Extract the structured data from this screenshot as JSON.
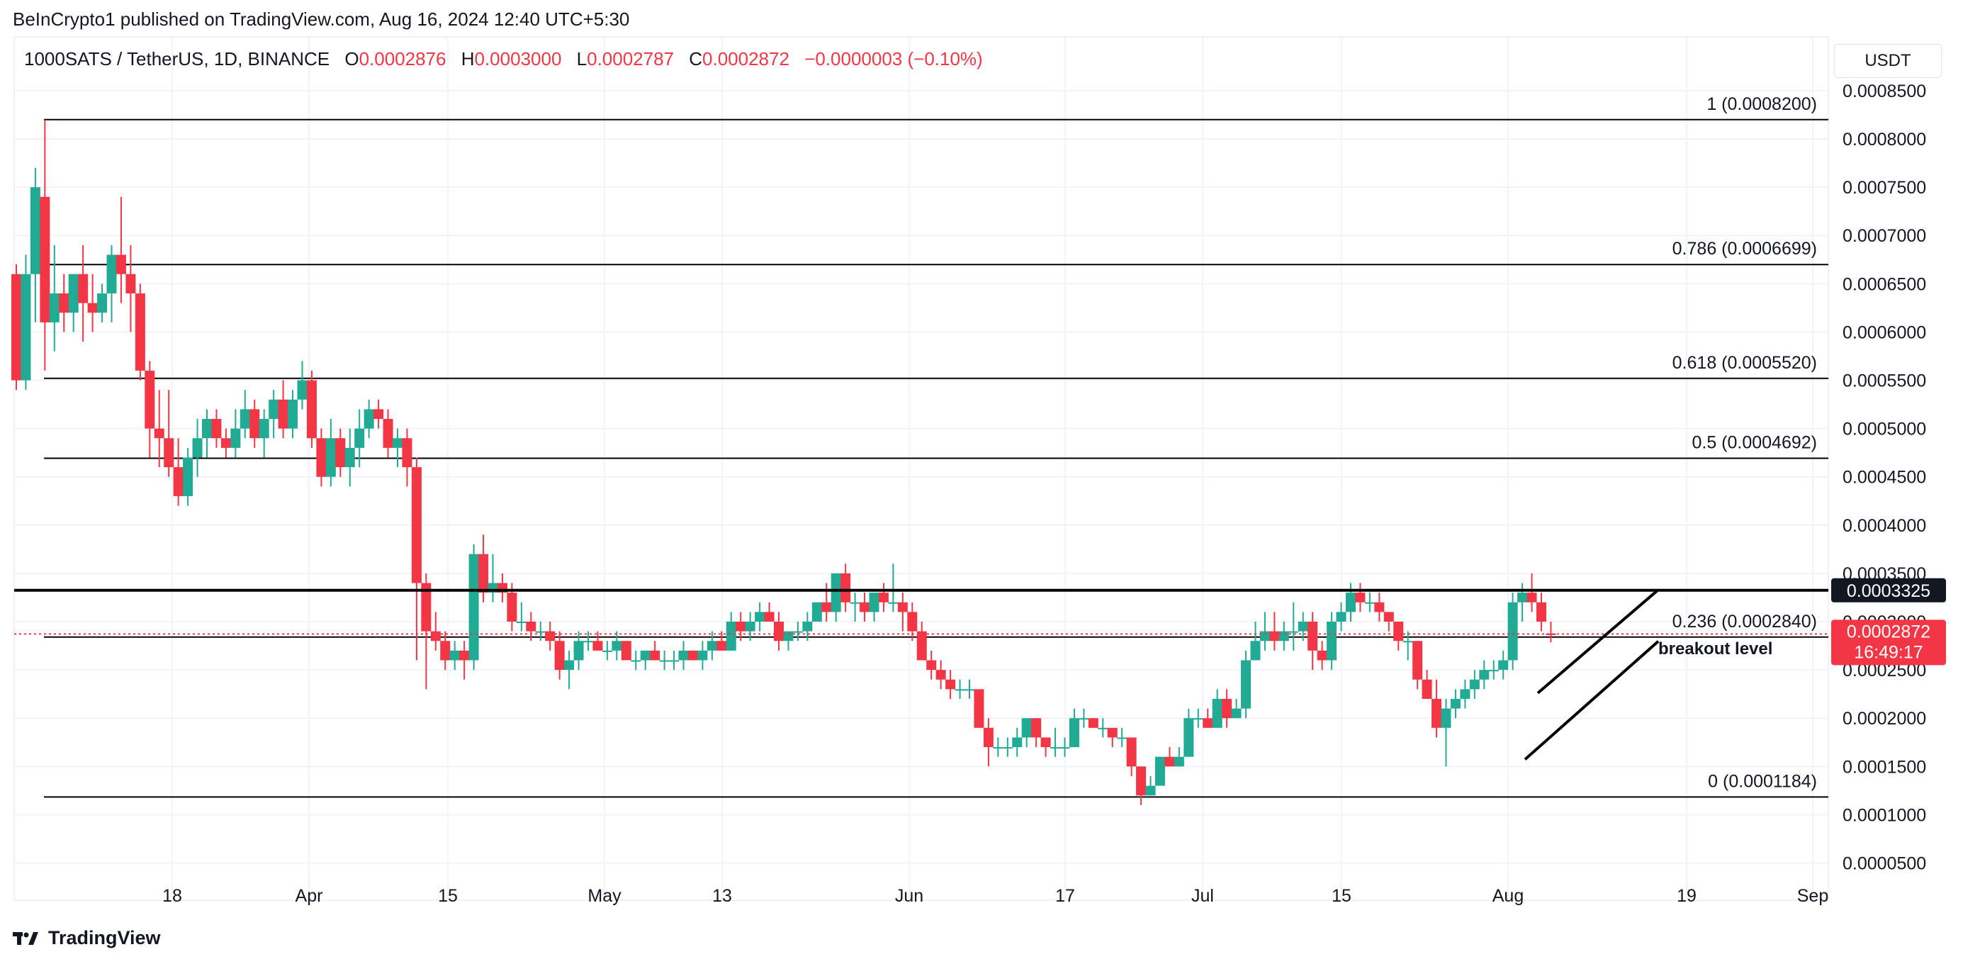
{
  "header": {
    "published": "BeInCrypto1 published on TradingView.com, Aug 16, 2024 12:40 UTC+5:30",
    "symbol": "1000SATS / TetherUS, 1D, BINANCE",
    "o_label": "O",
    "o_value": "0.0002876",
    "h_label": "H",
    "h_value": "0.0003000",
    "l_label": "L",
    "l_value": "0.0002787",
    "c_label": "C",
    "c_value": "0.0002872",
    "change": "−0.0000003 (−0.10%)"
  },
  "currency": "USDT",
  "footer": {
    "brand": "TradingView"
  },
  "colors": {
    "up": "#22ab94",
    "down": "#f23645",
    "grid": "#f0f3fa",
    "text": "#131722",
    "line": "#000000"
  },
  "chart_data": {
    "type": "candlestick",
    "x_ticks": [
      "18",
      "Apr",
      "15",
      "May",
      "13",
      "Jun",
      "17",
      "Jul",
      "15",
      "Aug",
      "19",
      "Sep"
    ],
    "y_ticks": [
      "0.0008500",
      "0.0008000",
      "0.0007500",
      "0.0007000",
      "0.0006500",
      "0.0006000",
      "0.0005500",
      "0.0005000",
      "0.0004500",
      "0.0004000",
      "0.0003500",
      "0.0003000",
      "0.0002500",
      "0.0002000",
      "0.0001500",
      "0.0001000",
      "0.0000500"
    ],
    "y_tick_values": [
      0.00085,
      0.0008,
      0.00075,
      0.0007,
      0.00065,
      0.0006,
      0.00055,
      0.0005,
      0.00045,
      0.0004,
      0.00035,
      0.0003,
      0.00025,
      0.0002,
      0.00015,
      0.0001,
      5e-05
    ],
    "fib_levels": [
      {
        "label": "1 (0.0008200)",
        "value": 0.00082
      },
      {
        "label": "0.786 (0.0006699)",
        "value": 0.0006699
      },
      {
        "label": "0.618 (0.0005520)",
        "value": 0.000552
      },
      {
        "label": "0.5 (0.0004692)",
        "value": 0.0004692
      },
      {
        "label": "0.236 (0.0002840)",
        "value": 0.000284
      },
      {
        "label": "0 (0.0001184)",
        "value": 0.0001184
      }
    ],
    "resistance": {
      "value": 0.00033245,
      "label": "0.0003325"
    },
    "last_price": {
      "value": 0.0002872,
      "label": "0.0002872",
      "countdown": "16:49:17"
    },
    "annotation": "breakout level",
    "channel": {
      "lower": {
        "from": [
          "Aug 1",
          0.000172
        ],
        "to": [
          "Aug 16",
          0.000287
        ]
      },
      "upper": {
        "from": [
          "Aug 1",
          0.000226
        ],
        "to": [
          "Aug 16",
          0.000333
        ]
      }
    },
    "candles": [
      [
        0.00066,
        0.00067,
        0.00054,
        0.00055
      ],
      [
        0.00055,
        0.00068,
        0.00054,
        0.00066
      ],
      [
        0.00066,
        0.00077,
        0.00061,
        0.00075
      ],
      [
        0.00074,
        0.00082,
        0.00056,
        0.00061
      ],
      [
        0.00061,
        0.00069,
        0.00058,
        0.00064
      ],
      [
        0.00064,
        0.00066,
        0.0006,
        0.00062
      ],
      [
        0.00062,
        0.00066,
        0.0006,
        0.00066
      ],
      [
        0.00066,
        0.00069,
        0.00059,
        0.00063
      ],
      [
        0.00063,
        0.00066,
        0.0006,
        0.00062
      ],
      [
        0.00062,
        0.00065,
        0.00061,
        0.00064
      ],
      [
        0.00064,
        0.00069,
        0.00061,
        0.00068
      ],
      [
        0.00068,
        0.00074,
        0.00063,
        0.00066
      ],
      [
        0.00066,
        0.00069,
        0.0006,
        0.00064
      ],
      [
        0.00064,
        0.00065,
        0.00055,
        0.00056
      ],
      [
        0.00056,
        0.00057,
        0.00047,
        0.0005
      ],
      [
        0.0005,
        0.00054,
        0.00046,
        0.00049
      ],
      [
        0.00049,
        0.00054,
        0.00045,
        0.00046
      ],
      [
        0.00046,
        0.00049,
        0.00042,
        0.00043
      ],
      [
        0.00043,
        0.00048,
        0.00042,
        0.00047
      ],
      [
        0.00047,
        0.00051,
        0.00045,
        0.00049
      ],
      [
        0.00049,
        0.00052,
        0.00047,
        0.00051
      ],
      [
        0.00051,
        0.00052,
        0.00048,
        0.00049
      ],
      [
        0.00049,
        0.0005,
        0.00047,
        0.00048
      ],
      [
        0.00048,
        0.00052,
        0.00047,
        0.0005
      ],
      [
        0.0005,
        0.00054,
        0.00049,
        0.00052
      ],
      [
        0.00052,
        0.00053,
        0.00048,
        0.00049
      ],
      [
        0.00049,
        0.00052,
        0.00047,
        0.00051
      ],
      [
        0.00051,
        0.00054,
        0.00049,
        0.00053
      ],
      [
        0.00053,
        0.00055,
        0.00049,
        0.0005
      ],
      [
        0.0005,
        0.00054,
        0.00049,
        0.00053
      ],
      [
        0.00053,
        0.00057,
        0.00052,
        0.00055
      ],
      [
        0.00055,
        0.00056,
        0.00048,
        0.00049
      ],
      [
        0.00049,
        0.0005,
        0.00044,
        0.00045
      ],
      [
        0.00045,
        0.00051,
        0.00044,
        0.00049
      ],
      [
        0.00049,
        0.0005,
        0.00045,
        0.00046
      ],
      [
        0.00046,
        0.0005,
        0.00044,
        0.00048
      ],
      [
        0.00048,
        0.00052,
        0.00046,
        0.0005
      ],
      [
        0.0005,
        0.00053,
        0.00049,
        0.00052
      ],
      [
        0.00052,
        0.00053,
        0.0005,
        0.00051
      ],
      [
        0.00051,
        0.00052,
        0.00047,
        0.00048
      ],
      [
        0.00048,
        0.0005,
        0.00046,
        0.00049
      ],
      [
        0.00049,
        0.0005,
        0.00044,
        0.00046
      ],
      [
        0.00046,
        0.00047,
        0.00026,
        0.00034
      ],
      [
        0.00034,
        0.00035,
        0.00023,
        0.00029
      ],
      [
        0.00029,
        0.00031,
        0.00027,
        0.00028
      ],
      [
        0.00028,
        0.00029,
        0.00025,
        0.00026
      ],
      [
        0.00026,
        0.00028,
        0.00025,
        0.00027
      ],
      [
        0.00027,
        0.00028,
        0.00024,
        0.00026
      ],
      [
        0.00026,
        0.00038,
        0.00025,
        0.00037
      ],
      [
        0.00037,
        0.00039,
        0.00032,
        0.00033
      ],
      [
        0.00033,
        0.00037,
        0.00032,
        0.00034
      ],
      [
        0.00034,
        0.00035,
        0.00032,
        0.00033
      ],
      [
        0.00033,
        0.00034,
        0.00029,
        0.0003
      ],
      [
        0.0003,
        0.00032,
        0.00029,
        0.0003
      ],
      [
        0.0003,
        0.00031,
        0.00028,
        0.00029
      ],
      [
        0.00029,
        0.0003,
        0.00028,
        0.00029
      ],
      [
        0.00029,
        0.0003,
        0.00027,
        0.00028
      ],
      [
        0.00028,
        0.00029,
        0.00024,
        0.00025
      ],
      [
        0.00025,
        0.00027,
        0.00023,
        0.00026
      ],
      [
        0.00026,
        0.00029,
        0.00025,
        0.00028
      ],
      [
        0.00028,
        0.00029,
        0.00027,
        0.00028
      ],
      [
        0.00028,
        0.00029,
        0.00027,
        0.00027
      ],
      [
        0.00027,
        0.00028,
        0.00026,
        0.00027
      ],
      [
        0.00027,
        0.00029,
        0.00026,
        0.00028
      ],
      [
        0.00028,
        0.00028,
        0.00026,
        0.00026
      ],
      [
        0.00026,
        0.00027,
        0.00025,
        0.00026
      ],
      [
        0.00026,
        0.00027,
        0.00025,
        0.00027
      ],
      [
        0.00027,
        0.00028,
        0.00026,
        0.00026
      ],
      [
        0.00026,
        0.00027,
        0.00025,
        0.00026
      ],
      [
        0.00026,
        0.00027,
        0.00025,
        0.00026
      ],
      [
        0.00026,
        0.00028,
        0.00025,
        0.00027
      ],
      [
        0.00027,
        0.00027,
        0.00026,
        0.00026
      ],
      [
        0.00026,
        0.00028,
        0.00025,
        0.00027
      ],
      [
        0.00027,
        0.00029,
        0.00026,
        0.00028
      ],
      [
        0.00028,
        0.00029,
        0.00027,
        0.00027
      ],
      [
        0.00027,
        0.00031,
        0.00027,
        0.0003
      ],
      [
        0.0003,
        0.00031,
        0.00028,
        0.00029
      ],
      [
        0.00029,
        0.00031,
        0.00028,
        0.0003
      ],
      [
        0.0003,
        0.00032,
        0.00029,
        0.00031
      ],
      [
        0.00031,
        0.00032,
        0.0003,
        0.0003
      ],
      [
        0.0003,
        0.00031,
        0.00027,
        0.00028
      ],
      [
        0.00028,
        0.00029,
        0.00027,
        0.00029
      ],
      [
        0.00029,
        0.0003,
        0.00028,
        0.00029
      ],
      [
        0.00029,
        0.00031,
        0.00028,
        0.0003
      ],
      [
        0.0003,
        0.00032,
        0.0003,
        0.00032
      ],
      [
        0.00032,
        0.00034,
        0.0003,
        0.00031
      ],
      [
        0.00031,
        0.00035,
        0.0003,
        0.00035
      ],
      [
        0.00035,
        0.00036,
        0.00031,
        0.00032
      ],
      [
        0.00032,
        0.00033,
        0.0003,
        0.00032
      ],
      [
        0.00032,
        0.00033,
        0.0003,
        0.00031
      ],
      [
        0.00031,
        0.00033,
        0.0003,
        0.00033
      ],
      [
        0.00033,
        0.00034,
        0.00031,
        0.00032
      ],
      [
        0.00032,
        0.00036,
        0.00031,
        0.00032
      ],
      [
        0.00032,
        0.00033,
        0.00029,
        0.00031
      ],
      [
        0.00031,
        0.00032,
        0.00028,
        0.00029
      ],
      [
        0.00029,
        0.0003,
        0.00026,
        0.00026
      ],
      [
        0.00026,
        0.00027,
        0.00024,
        0.00025
      ],
      [
        0.00025,
        0.00026,
        0.00023,
        0.00024
      ],
      [
        0.00024,
        0.00025,
        0.00022,
        0.00023
      ],
      [
        0.00023,
        0.00024,
        0.00022,
        0.00023
      ],
      [
        0.00023,
        0.00024,
        0.00022,
        0.00023
      ],
      [
        0.00023,
        0.00023,
        0.00019,
        0.00019
      ],
      [
        0.00019,
        0.0002,
        0.00015,
        0.00017
      ],
      [
        0.00017,
        0.00018,
        0.00016,
        0.00017
      ],
      [
        0.00017,
        0.00018,
        0.00016,
        0.00017
      ],
      [
        0.00017,
        0.00019,
        0.00016,
        0.00018
      ],
      [
        0.00018,
        0.0002,
        0.00017,
        0.0002
      ],
      [
        0.0002,
        0.0002,
        0.00017,
        0.00018
      ],
      [
        0.00018,
        0.00018,
        0.00016,
        0.00017
      ],
      [
        0.00017,
        0.00019,
        0.00016,
        0.00017
      ],
      [
        0.00017,
        0.00018,
        0.00016,
        0.00017
      ],
      [
        0.00017,
        0.00021,
        0.00017,
        0.0002
      ],
      [
        0.0002,
        0.00021,
        0.00019,
        0.0002
      ],
      [
        0.0002,
        0.0002,
        0.00019,
        0.00019
      ],
      [
        0.00019,
        0.0002,
        0.00018,
        0.00019
      ],
      [
        0.00019,
        0.00019,
        0.00017,
        0.00018
      ],
      [
        0.00018,
        0.00019,
        0.00017,
        0.00018
      ],
      [
        0.00018,
        0.00018,
        0.00014,
        0.00015
      ],
      [
        0.00015,
        0.00015,
        0.00011,
        0.00012
      ],
      [
        0.00012,
        0.00014,
        0.00012,
        0.00013
      ],
      [
        0.00013,
        0.00016,
        0.00013,
        0.00016
      ],
      [
        0.00016,
        0.00017,
        0.00015,
        0.00015
      ],
      [
        0.00015,
        0.00017,
        0.00015,
        0.00016
      ],
      [
        0.00016,
        0.00021,
        0.00016,
        0.0002
      ],
      [
        0.0002,
        0.00021,
        0.00019,
        0.0002
      ],
      [
        0.0002,
        0.00021,
        0.00019,
        0.00019
      ],
      [
        0.00019,
        0.00023,
        0.00019,
        0.00022
      ],
      [
        0.00022,
        0.00023,
        0.00019,
        0.0002
      ],
      [
        0.0002,
        0.00022,
        0.0002,
        0.00021
      ],
      [
        0.00021,
        0.00027,
        0.0002,
        0.00026
      ],
      [
        0.00026,
        0.0003,
        0.00026,
        0.00028
      ],
      [
        0.00028,
        0.00031,
        0.00027,
        0.00029
      ],
      [
        0.00029,
        0.00031,
        0.00027,
        0.00028
      ],
      [
        0.00028,
        0.0003,
        0.00027,
        0.00029
      ],
      [
        0.00029,
        0.00032,
        0.00027,
        0.00029
      ],
      [
        0.00029,
        0.00031,
        0.00028,
        0.0003
      ],
      [
        0.0003,
        0.00031,
        0.00025,
        0.00027
      ],
      [
        0.00027,
        0.00028,
        0.00025,
        0.00026
      ],
      [
        0.00026,
        0.00031,
        0.00025,
        0.0003
      ],
      [
        0.0003,
        0.00032,
        0.00029,
        0.00031
      ],
      [
        0.00031,
        0.00034,
        0.0003,
        0.00033
      ],
      [
        0.00033,
        0.00034,
        0.00031,
        0.00032
      ],
      [
        0.00032,
        0.00033,
        0.00031,
        0.00032
      ],
      [
        0.00032,
        0.00033,
        0.0003,
        0.00031
      ],
      [
        0.00031,
        0.00031,
        0.00029,
        0.0003
      ],
      [
        0.0003,
        0.0003,
        0.00027,
        0.00028
      ],
      [
        0.00028,
        0.00029,
        0.00026,
        0.00028
      ],
      [
        0.00028,
        0.00028,
        0.00023,
        0.00024
      ],
      [
        0.00024,
        0.00025,
        0.00022,
        0.00022
      ],
      [
        0.00022,
        0.00024,
        0.00018,
        0.00019
      ],
      [
        0.00019,
        0.00022,
        0.00015,
        0.00021
      ],
      [
        0.00021,
        0.00023,
        0.0002,
        0.00022
      ],
      [
        0.00022,
        0.00024,
        0.00021,
        0.00023
      ],
      [
        0.00023,
        0.00025,
        0.00022,
        0.00024
      ],
      [
        0.00024,
        0.00026,
        0.00023,
        0.00025
      ],
      [
        0.00025,
        0.00026,
        0.00024,
        0.00025
      ],
      [
        0.00025,
        0.00027,
        0.00024,
        0.00026
      ],
      [
        0.00026,
        0.00033,
        0.00025,
        0.00032
      ],
      [
        0.00032,
        0.00034,
        0.0003,
        0.00033
      ],
      [
        0.00033,
        0.00035,
        0.00031,
        0.00032
      ],
      [
        0.00032,
        0.00033,
        0.00029,
        0.0003
      ],
      [
        0.0002876,
        0.0003,
        0.0002787,
        0.0002872
      ]
    ]
  }
}
